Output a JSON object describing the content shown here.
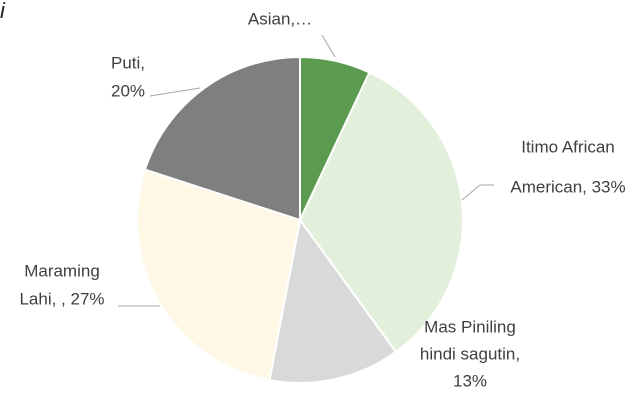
{
  "chart_data": {
    "type": "pie",
    "title": "i",
    "values": [
      7,
      33,
      13,
      27,
      20
    ],
    "value_labels": [
      [
        "Asian,…"
      ],
      [
        "Itimo African",
        "American, 33%"
      ],
      [
        "Mas Piniling",
        "hindi sagutin,",
        "13%"
      ],
      [
        "Maraming",
        "Lahi, , 27%"
      ],
      [
        "Puti,",
        "20%"
      ]
    ],
    "colors": [
      "#5b9b4f",
      "#e2efda",
      "#d9d9d9",
      "#fff8e7",
      "#7f7f7f"
    ]
  }
}
